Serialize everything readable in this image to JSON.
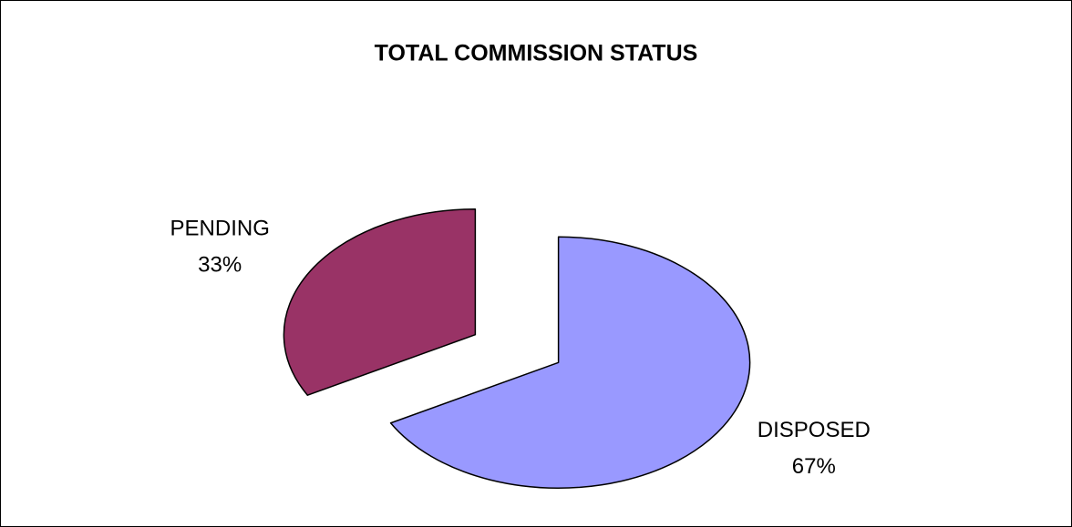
{
  "chart_data": {
    "type": "pie",
    "title": "TOTAL COMMISSION STATUS",
    "categories": [
      "DISPOSED",
      "PENDING"
    ],
    "values": [
      67,
      33
    ],
    "value_labels": [
      "67%",
      "33%"
    ],
    "colors": [
      "#9999ff",
      "#993366"
    ]
  }
}
